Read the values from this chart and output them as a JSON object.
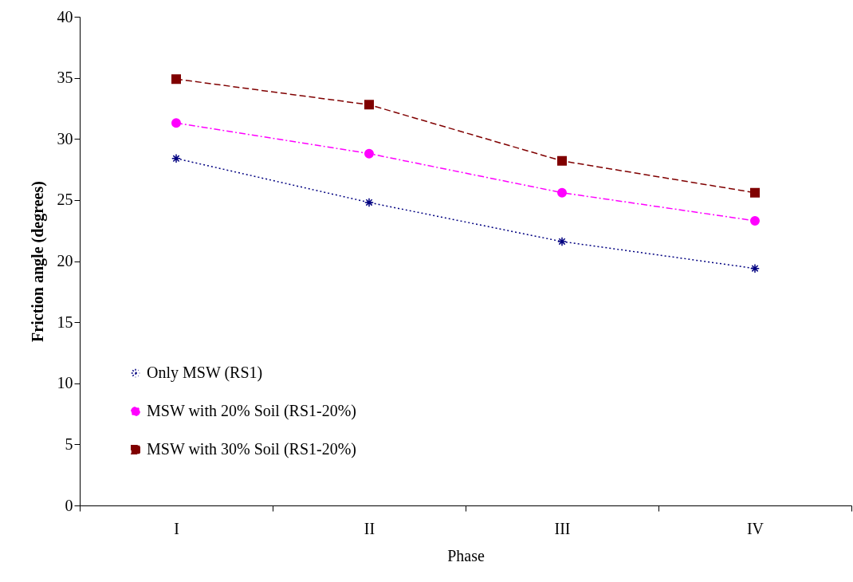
{
  "chart_data": {
    "type": "line",
    "xlabel": "Phase",
    "ylabel": "Friction angle (degrees)",
    "categories": [
      "I",
      "II",
      "III",
      "IV"
    ],
    "ylim": [
      0,
      40
    ],
    "yticks": [
      0,
      5,
      10,
      15,
      20,
      25,
      30,
      35,
      40
    ],
    "grid": false,
    "legend": "bottom left",
    "series": [
      {
        "name": "Only MSW (RS1)",
        "color": "#000080",
        "values": [
          28.4,
          24.8,
          21.6,
          19.4
        ],
        "marker": "cross",
        "line_style": "dotted"
      },
      {
        "name": "MSW with 20% Soil (RS1-20%)",
        "color": "#ff00ff",
        "values": [
          31.3,
          28.8,
          25.6,
          23.3
        ],
        "marker": "circle",
        "line_style": "dashdot"
      },
      {
        "name": "MSW with 30% Soil (RS1-20%)",
        "color": "#800000",
        "values": [
          34.9,
          32.8,
          28.2,
          25.6
        ],
        "marker": "square",
        "line_style": "dashed"
      }
    ]
  }
}
